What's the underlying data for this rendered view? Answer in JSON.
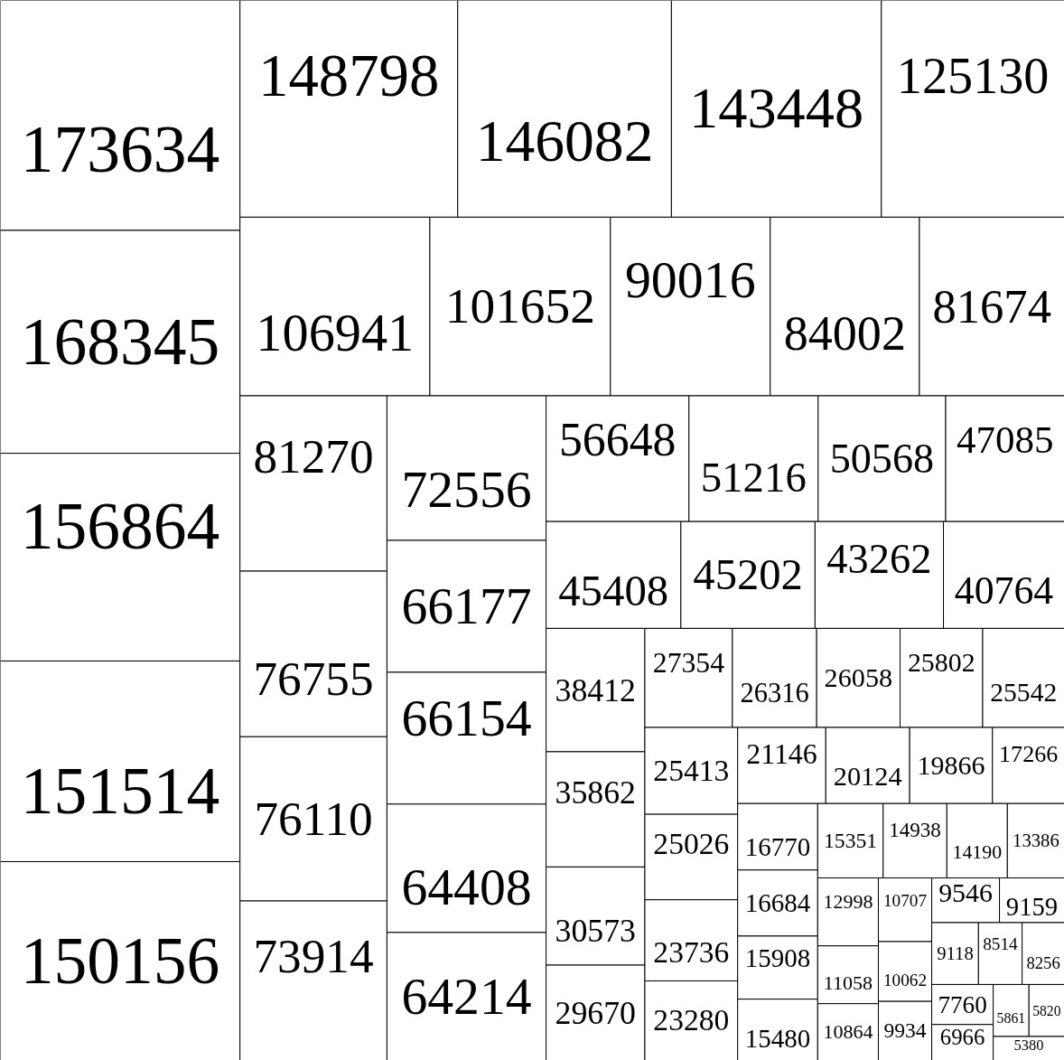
{
  "chart_data": {
    "type": "other",
    "data_labels": true,
    "values": [
      173634,
      168345,
      156864,
      151514,
      150156,
      148798,
      146082,
      143448,
      125130,
      106941,
      101652,
      90016,
      84002,
      81674,
      81270,
      76755,
      76110,
      73914,
      72556,
      66177,
      66154,
      64408,
      64214,
      56648,
      51216,
      50568,
      47085,
      45408,
      45202,
      43262,
      40764,
      38412,
      35862,
      30573,
      29670,
      27354,
      26316,
      26058,
      25802,
      25542,
      25413,
      25026,
      23736,
      23280,
      21146,
      20124,
      19866,
      17266,
      16770,
      16684,
      15908,
      15480,
      15351,
      14938,
      14190,
      13386,
      12998,
      11058,
      10864,
      10707,
      10062,
      9934,
      9546,
      9159,
      9118,
      8514,
      8256,
      7760,
      6966,
      5861,
      5820,
      5380
    ],
    "categories": [
      "173634",
      "168345",
      "156864",
      "151514",
      "150156",
      "148798",
      "146082",
      "143448",
      "125130",
      "106941",
      "101652",
      "90016",
      "84002",
      "81674",
      "81270",
      "76755",
      "76110",
      "73914",
      "72556",
      "66177",
      "66154",
      "64408",
      "64214",
      "56648",
      "51216",
      "50568",
      "47085",
      "45408",
      "45202",
      "43262",
      "40764",
      "38412",
      "35862",
      "30573",
      "29670",
      "27354",
      "26316",
      "26058",
      "25802",
      "25542",
      "25413",
      "25026",
      "23736",
      "23280",
      "21146",
      "20124",
      "19866",
      "17266",
      "16770",
      "16684",
      "15908",
      "15480",
      "15351",
      "14938",
      "14190",
      "13386",
      "12998",
      "11058",
      "10864",
      "10707",
      "10062",
      "9934",
      "9546",
      "9159",
      "9118",
      "8514",
      "8256",
      "7760",
      "6966",
      "5861",
      "5820",
      "5380"
    ]
  }
}
